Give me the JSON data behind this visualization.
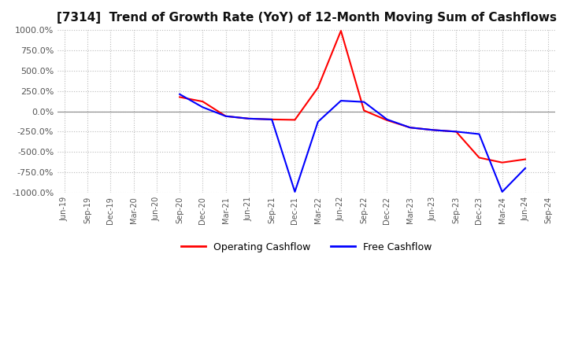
{
  "title": "[7314]  Trend of Growth Rate (YoY) of 12-Month Moving Sum of Cashflows",
  "ylim": [
    -1000,
    1000
  ],
  "yticks": [
    1000.0,
    750.0,
    500.0,
    250.0,
    0.0,
    -250.0,
    -500.0,
    -750.0,
    -1000.0
  ],
  "background_color": "#ffffff",
  "grid_color": "#bbbbbb",
  "operating_color": "#ff0000",
  "free_color": "#0000ff",
  "x_labels": [
    "Jun-19",
    "Sep-19",
    "Dec-19",
    "Mar-20",
    "Jun-20",
    "Sep-20",
    "Dec-20",
    "Mar-21",
    "Jun-21",
    "Sep-21",
    "Dec-21",
    "Mar-22",
    "Jun-22",
    "Sep-22",
    "Dec-22",
    "Mar-23",
    "Jun-23",
    "Sep-23",
    "Dec-23",
    "Mar-24",
    "Jun-24",
    "Sep-24"
  ],
  "operating_cashflow": [
    null,
    null,
    null,
    null,
    null,
    175.0,
    120.0,
    -60.0,
    -90.0,
    -100.0,
    -105.0,
    290.0,
    990.0,
    10.0,
    -110.0,
    -200.0,
    -230.0,
    -250.0,
    -570.0,
    -630.0,
    -590.0,
    null
  ],
  "free_cashflow": [
    null,
    null,
    null,
    null,
    null,
    210.0,
    50.0,
    -60.0,
    -90.0,
    -100.0,
    -990.0,
    -130.0,
    130.0,
    115.0,
    -100.0,
    -200.0,
    -230.0,
    -250.0,
    -280.0,
    -990.0,
    -700.0,
    null
  ]
}
